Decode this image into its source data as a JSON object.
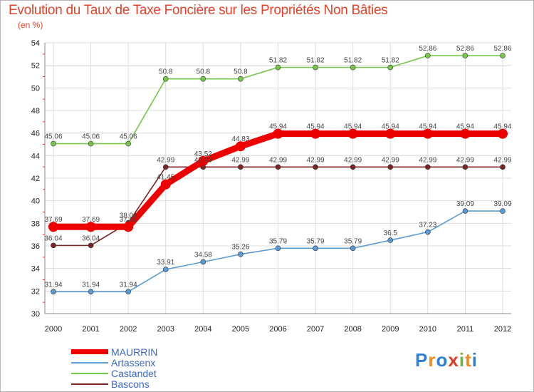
{
  "chart_data": {
    "type": "line",
    "title": "Evolution du Taux de Taxe Foncière sur les Propriétés Non Bâties",
    "ylabel": "(en %)",
    "xlabel": "",
    "categories": [
      "2000",
      "2001",
      "2002",
      "2003",
      "2004",
      "2005",
      "2006",
      "2007",
      "2008",
      "2009",
      "2010",
      "2011",
      "2012"
    ],
    "ylim": [
      30,
      54
    ],
    "yticks": [
      30,
      32,
      34,
      36,
      38,
      40,
      42,
      44,
      46,
      48,
      50,
      52,
      54
    ],
    "grid": true,
    "series": [
      {
        "name": "MAURRIN",
        "color": "#ee0000",
        "values": [
          37.69,
          37.69,
          37.69,
          41.45,
          43.52,
          44.83,
          45.94,
          45.94,
          45.94,
          45.94,
          45.94,
          45.94,
          45.94
        ]
      },
      {
        "name": "Artassenx",
        "color": "#5a9bd5",
        "values": [
          31.94,
          31.94,
          31.94,
          33.91,
          34.58,
          35.26,
          35.79,
          35.79,
          35.79,
          36.5,
          37.23,
          39.09,
          39.09
        ]
      },
      {
        "name": "Castandet",
        "color": "#77c84a",
        "values": [
          45.06,
          45.06,
          45.06,
          50.8,
          50.8,
          50.8,
          51.82,
          51.82,
          51.82,
          51.82,
          52.86,
          52.86,
          52.86
        ]
      },
      {
        "name": "Bascons",
        "color": "#7a2424",
        "values": [
          36.04,
          36.04,
          38.04,
          42.99,
          42.99,
          42.99,
          42.99,
          42.99,
          42.99,
          42.99,
          42.99,
          42.99,
          42.99
        ]
      }
    ]
  },
  "logo": {
    "text": "Proxiti",
    "letters": [
      "P",
      "r",
      "o",
      "x",
      "i",
      "t",
      "i"
    ],
    "colors": [
      "#2f7fd6",
      "#f08a1c",
      "#2f7fd6",
      "#e53a2a",
      "#6ab53a",
      "#f08a1c",
      "#2f7fd6"
    ]
  }
}
